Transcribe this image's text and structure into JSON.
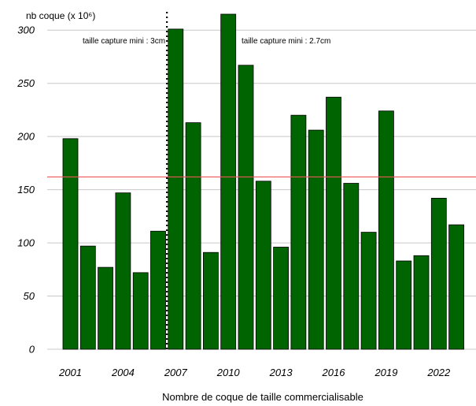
{
  "chart_data": {
    "type": "bar",
    "title": "",
    "xlabel": "Nombre de coque de taille commercialisable",
    "ylabel": "nb coque (x 10⁶)",
    "ylim": [
      0,
      315
    ],
    "y_ticks": [
      0,
      50,
      100,
      150,
      200,
      250,
      300
    ],
    "x_tick_labels": [
      "2001",
      "2004",
      "2007",
      "2010",
      "2013",
      "2016",
      "2019",
      "2022"
    ],
    "grid": true,
    "bar_color": "#006400",
    "categories": [
      "2001",
      "2002",
      "2003",
      "2004",
      "2005",
      "2006",
      "2007",
      "2008",
      "2009",
      "2010",
      "2011",
      "2012",
      "2013",
      "2014",
      "2015",
      "2016",
      "2017",
      "2018",
      "2019",
      "2020",
      "2021",
      "2022",
      "2023"
    ],
    "values": [
      198,
      97,
      77,
      147,
      72,
      111,
      301,
      213,
      91,
      315,
      267,
      158,
      96,
      220,
      206,
      237,
      156,
      110,
      224,
      83,
      88,
      142,
      117
    ],
    "reference_line": {
      "value": 162,
      "color": "#ee5555"
    },
    "regime_change": {
      "between": [
        "2006",
        "2007"
      ],
      "style": "dotted"
    },
    "annotations": [
      "taille capture mini : 3cm",
      "taille capture mini : 2.7cm"
    ]
  }
}
